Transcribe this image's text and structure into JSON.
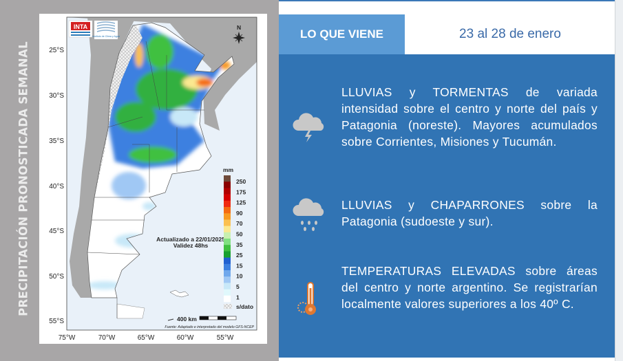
{
  "side_title": "PRECIPITACIÓN PRONOSTICADA SEMANAL",
  "map": {
    "logos": {
      "inta": "INTA",
      "instituto": "Instituto de Clima y Agua"
    },
    "north_label": "N",
    "lat_ticks": [
      "25°S",
      "30°S",
      "35°S",
      "40°S",
      "45°S",
      "50°S",
      "55°S"
    ],
    "lon_ticks": [
      "75°W",
      "70°W",
      "65°W",
      "60°W",
      "55°W"
    ],
    "updated": "Actualizado a 22/01/2025",
    "validity": "Validez 48hs",
    "scale_label": "400 km",
    "source": "Fuente: Adaptado e interpretado del modelo GFS-NCEP",
    "legend": {
      "unit": "mm",
      "labels": [
        "250",
        "175",
        "125",
        "90",
        "70",
        "50",
        "35",
        "25",
        "15",
        "10",
        "5",
        "1"
      ],
      "colors": [
        "#6e4a3a",
        "#8b0000",
        "#b00000",
        "#d40000",
        "#f02a10",
        "#f56a10",
        "#f89a20",
        "#fbc050",
        "#fbe890",
        "#c8f0b0",
        "#80e080",
        "#40c040",
        "#18a030",
        "#2060d0",
        "#3c80e0",
        "#70a8ec",
        "#a0c8f4",
        "#c8e8f8",
        "#e0f8fc",
        "#ffffff"
      ],
      "nodata": "s/dato"
    }
  },
  "header": {
    "tab": "LO QUE VIENE",
    "date_range": "23 al 28 de enero"
  },
  "items": [
    {
      "icon": "storm-cloud-icon",
      "text": "LLUVIAS y TORMENTAS de variada intensidad sobre el centro y norte del país y Patagonia (noreste). Mayores acumulados sobre Corrientes, Misiones y Tucumán."
    },
    {
      "icon": "rain-cloud-icon",
      "text": "LLUVIAS y CHAPARRONES sobre la Patagonia (sudoeste y sur)."
    },
    {
      "icon": "thermometer-sun-icon",
      "text": "TEMPERATURAS ELEVADAS sobre áreas del centro y norte argentino. Se registrarían localmente valores superiores a los 40º C."
    }
  ],
  "colors": {
    "panel": "#3174b4",
    "tab": "#5b9bd5",
    "date": "#3a6aa8",
    "side": "#a8a6a7"
  }
}
